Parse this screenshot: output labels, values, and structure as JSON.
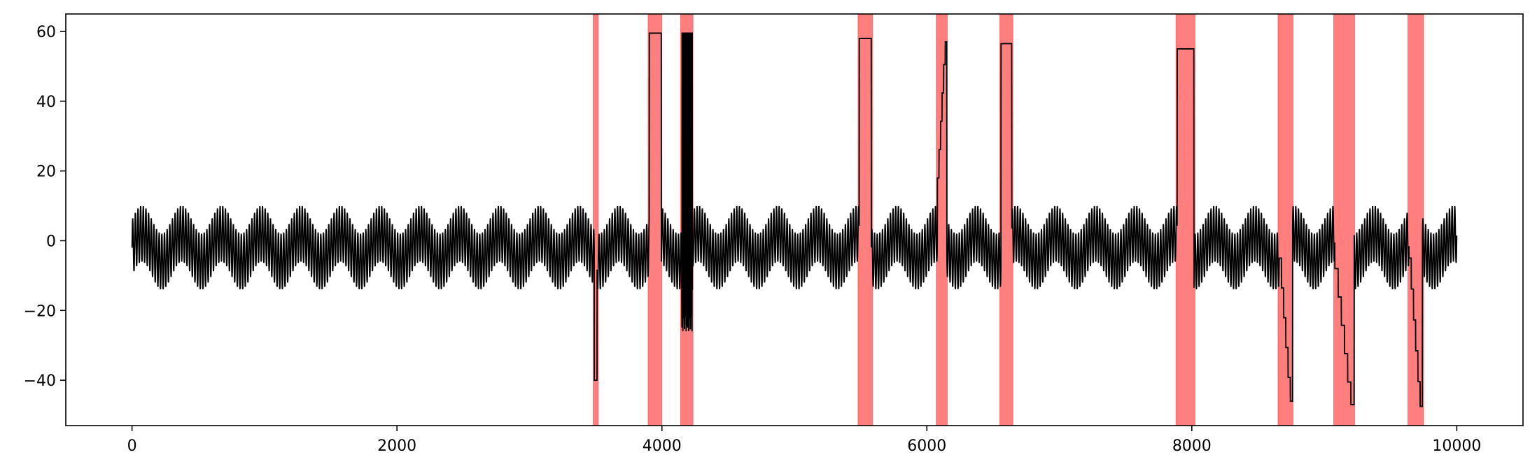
{
  "chart_data": {
    "type": "line",
    "title": "",
    "xlabel": "",
    "ylabel": "",
    "xlim": [
      -500,
      10500
    ],
    "ylim": [
      -53,
      65
    ],
    "x_ticks": [
      0,
      2000,
      4000,
      6000,
      8000,
      10000
    ],
    "y_ticks": [
      -40,
      -20,
      0,
      20,
      40,
      60
    ],
    "x_tick_labels": [
      "0",
      "2000",
      "4000",
      "6000",
      "8000",
      "10000"
    ],
    "y_tick_labels": [
      "−40",
      "−20",
      "0",
      "20",
      "40",
      "60"
    ],
    "grid": false,
    "legend": "none",
    "colors": {
      "line": "#000000",
      "highlight": "#ff0000",
      "highlight_opacity": 0.5
    },
    "series": [
      {
        "x_range": [
          0,
          10000
        ],
        "baseline": {
          "fast_period": 20,
          "fast_amplitude": 8,
          "slow_period": 300,
          "slow_amplitude": 4,
          "offset": -2
        },
        "anomalies": [
          {
            "type": "level",
            "x_start": 3490,
            "x_end": 3510,
            "value": -40
          },
          {
            "type": "level",
            "x_start": 3905,
            "x_end": 3995,
            "value": 59.5
          },
          {
            "type": "oscillating",
            "x_start": 4150,
            "x_end": 4230,
            "high": 59.5,
            "low": -20
          },
          {
            "type": "level",
            "x_start": 5490,
            "x_end": 5580,
            "value": 58
          },
          {
            "type": "ramp",
            "x_start": 6080,
            "x_end": 6150,
            "from": 18,
            "to": 57
          },
          {
            "type": "level",
            "x_start": 6560,
            "x_end": 6640,
            "value": 56.5
          },
          {
            "type": "level",
            "x_start": 7890,
            "x_end": 8015,
            "value": 55
          },
          {
            "type": "ramp",
            "x_start": 8660,
            "x_end": 8760,
            "from": -5,
            "to": -46
          },
          {
            "type": "ramp",
            "x_start": 9080,
            "x_end": 9225,
            "from": -8,
            "to": -47
          },
          {
            "type": "ramp",
            "x_start": 9640,
            "x_end": 9740,
            "from": -5,
            "to": -47.5
          }
        ]
      }
    ],
    "highlight_regions": [
      {
        "x_start": 3480,
        "x_end": 3520
      },
      {
        "x_start": 3895,
        "x_end": 4000
      },
      {
        "x_start": 4140,
        "x_end": 4235
      },
      {
        "x_start": 5480,
        "x_end": 5590
      },
      {
        "x_start": 6070,
        "x_end": 6155
      },
      {
        "x_start": 6550,
        "x_end": 6650
      },
      {
        "x_start": 7880,
        "x_end": 8025
      },
      {
        "x_start": 8650,
        "x_end": 8765
      },
      {
        "x_start": 9070,
        "x_end": 9230
      },
      {
        "x_start": 9630,
        "x_end": 9750
      }
    ]
  }
}
